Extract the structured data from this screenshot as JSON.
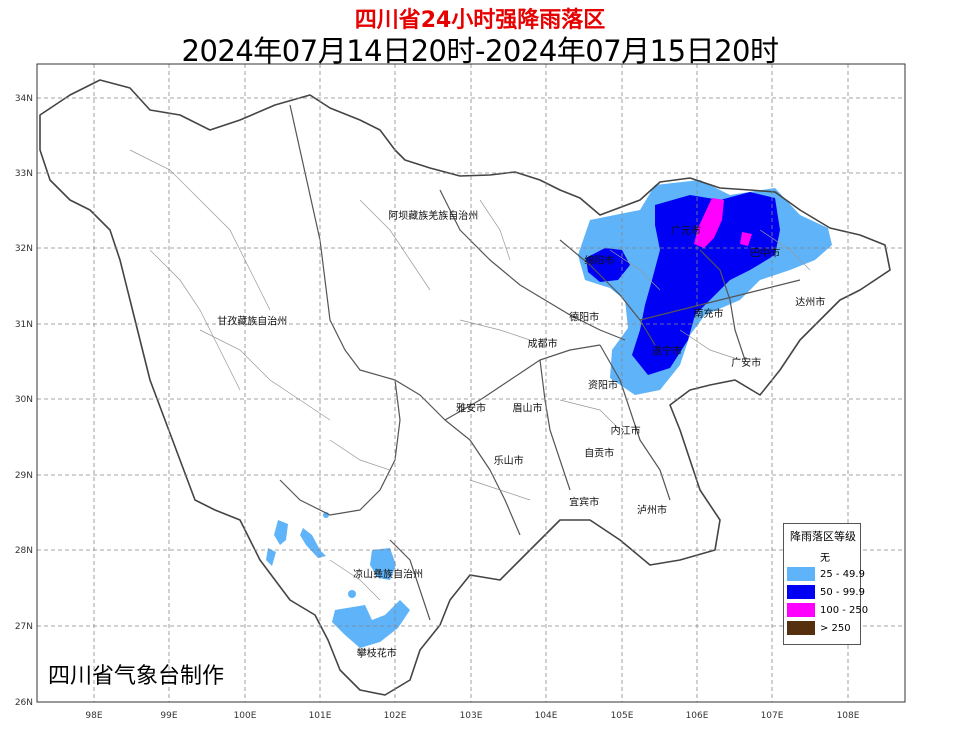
{
  "header": {
    "title": "四川省24小时强降雨落区",
    "time_range": "2024年07月14日20时-2024年07月15日20时"
  },
  "axes": {
    "lon_ticks": [
      "98E",
      "99E",
      "100E",
      "101E",
      "102E",
      "103E",
      "104E",
      "105E",
      "106E",
      "107E",
      "108E"
    ],
    "lat_ticks": [
      "34N",
      "33N",
      "32N",
      "31N",
      "30N",
      "29N",
      "28N",
      "27N",
      "26N"
    ]
  },
  "regions": [
    {
      "name": "阿坝藏族羌族自治州",
      "lon": 102.5,
      "lat": 32.4
    },
    {
      "name": "甘孜藏族自治州",
      "lon": 100.1,
      "lat": 31.0
    },
    {
      "name": "凉山彝族自治州",
      "lon": 101.9,
      "lat": 27.65
    },
    {
      "name": "绵阳市",
      "lon": 104.7,
      "lat": 31.8
    },
    {
      "name": "广元市",
      "lon": 105.85,
      "lat": 32.2
    },
    {
      "name": "巴中市",
      "lon": 106.9,
      "lat": 31.9
    },
    {
      "name": "达州市",
      "lon": 107.5,
      "lat": 31.25
    },
    {
      "name": "德阳市",
      "lon": 104.5,
      "lat": 31.05
    },
    {
      "name": "南充市",
      "lon": 106.15,
      "lat": 31.1
    },
    {
      "name": "成都市",
      "lon": 103.95,
      "lat": 30.7
    },
    {
      "name": "遂宁市",
      "lon": 105.6,
      "lat": 30.6
    },
    {
      "name": "广安市",
      "lon": 106.65,
      "lat": 30.45
    },
    {
      "name": "资阳市",
      "lon": 104.75,
      "lat": 30.15
    },
    {
      "name": "雅安市",
      "lon": 103.0,
      "lat": 29.85
    },
    {
      "name": "眉山市",
      "lon": 103.75,
      "lat": 29.85
    },
    {
      "name": "内江市",
      "lon": 105.05,
      "lat": 29.55
    },
    {
      "name": "乐山市",
      "lon": 103.5,
      "lat": 29.15
    },
    {
      "name": "自贡市",
      "lon": 104.7,
      "lat": 29.25
    },
    {
      "name": "宜宾市",
      "lon": 104.5,
      "lat": 28.6
    },
    {
      "name": "泸州市",
      "lon": 105.4,
      "lat": 28.5
    },
    {
      "name": "攀枝花市",
      "lon": 101.75,
      "lat": 26.6
    }
  ],
  "legend": {
    "title": "降雨落区等级",
    "items": [
      {
        "label": "无",
        "color": "#ffffff"
      },
      {
        "label": "25 - 49.9",
        "color": "#5fb3f8"
      },
      {
        "label": "50 - 99.9",
        "color": "#0000f5"
      },
      {
        "label": "100 - 250",
        "color": "#ff00ff"
      },
      {
        "label": "> 250",
        "color": "#562f0e"
      }
    ]
  },
  "credit": "四川省气象台制作"
}
